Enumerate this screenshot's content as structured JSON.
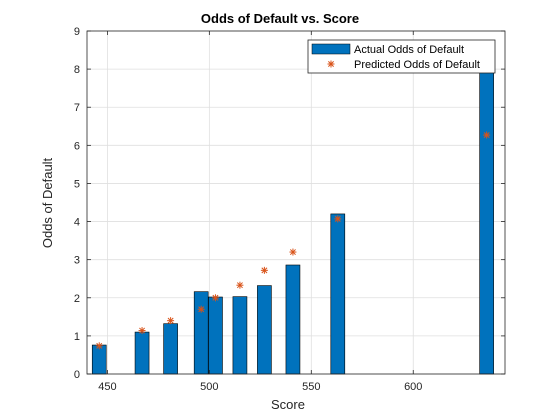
{
  "chart_data": {
    "type": "bar",
    "title": "Odds of Default vs. Score",
    "xlabel": "Score",
    "ylabel": "Odds of Default",
    "xlim": [
      440,
      645
    ],
    "ylim": [
      0,
      9
    ],
    "xticks": [
      450,
      500,
      550,
      600
    ],
    "yticks": [
      0,
      1,
      2,
      3,
      4,
      5,
      6,
      7,
      8,
      9
    ],
    "grid": true,
    "legend_position": "top-right",
    "series": [
      {
        "name": "Actual Odds of Default",
        "kind": "bar",
        "color": "#0072BD",
        "x": [
          446,
          467,
          481,
          496,
          503,
          515,
          527,
          541,
          563,
          636
        ],
        "y": [
          0.76,
          1.1,
          1.32,
          2.16,
          2.02,
          2.03,
          2.32,
          2.86,
          4.2,
          8.0
        ]
      },
      {
        "name": "Predicted Odds of Default",
        "kind": "marker",
        "marker": "asterisk",
        "color": "#D95319",
        "x": [
          446,
          467,
          481,
          496,
          503,
          515,
          527,
          541,
          563,
          636
        ],
        "y": [
          0.74,
          1.14,
          1.4,
          1.7,
          2.0,
          2.33,
          2.72,
          3.2,
          4.07,
          6.27
        ]
      }
    ]
  }
}
